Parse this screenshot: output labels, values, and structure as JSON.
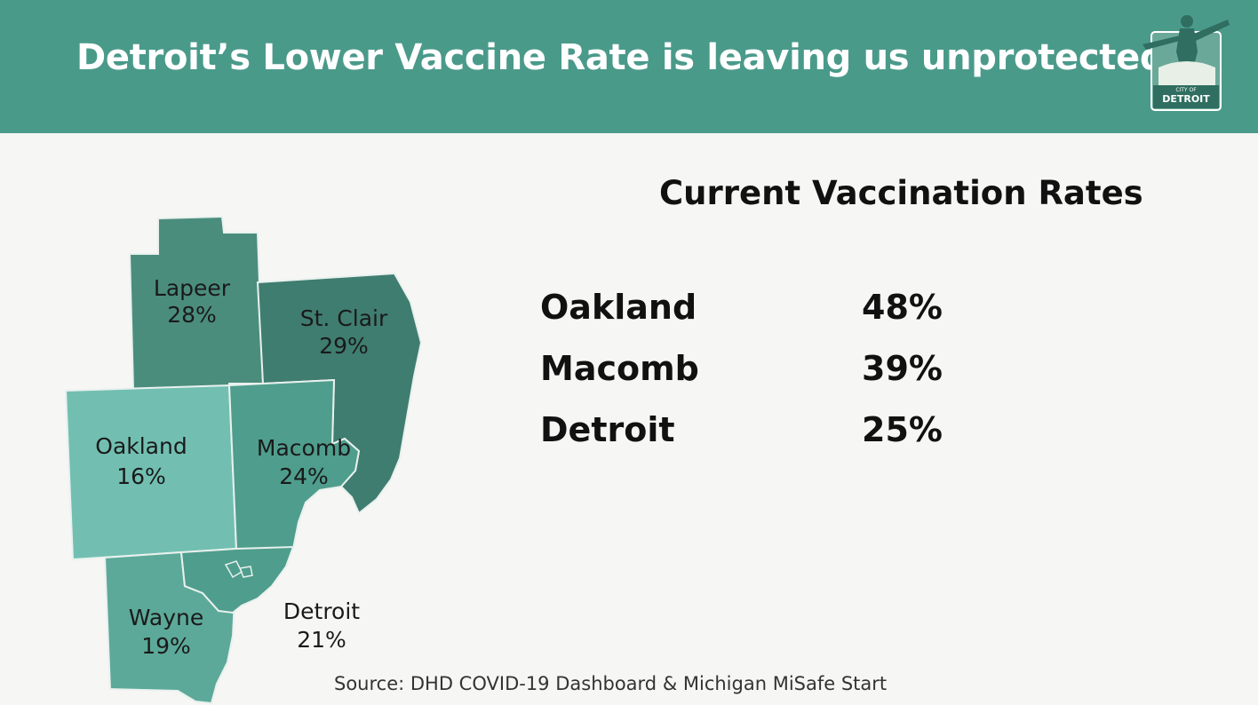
{
  "header": {
    "title": "Detroit’s Lower Vaccine Rate is leaving us unprotected",
    "background_color": "#4a9a8a",
    "logo": {
      "icon": "city-of-detroit-logo",
      "top_text": "CITY OF",
      "bottom_text": "DETROIT"
    }
  },
  "map": {
    "regions": [
      {
        "id": "lapeer",
        "name": "Lapeer",
        "value": "28%",
        "color": "#4b8d7d"
      },
      {
        "id": "stclair",
        "name": "St. Clair",
        "value": "29%",
        "color": "#3f7d70"
      },
      {
        "id": "oakland",
        "name": "Oakland",
        "value": "16%",
        "color": "#72bfb2"
      },
      {
        "id": "macomb",
        "name": "Macomb",
        "value": "24%",
        "color": "#4f9d8d"
      },
      {
        "id": "wayne",
        "name": "Wayne",
        "value": "19%",
        "color": "#5ca999"
      },
      {
        "id": "detroit",
        "name": "Detroit",
        "value": "21%",
        "color": "#4f9d8d"
      }
    ]
  },
  "rates": {
    "title": "Current Vaccination Rates",
    "rows": [
      {
        "name": "Oakland",
        "value": "48%"
      },
      {
        "name": "Macomb",
        "value": "39%"
      },
      {
        "name": "Detroit",
        "value": "25%"
      }
    ]
  },
  "source": "Source: DHD COVID-19 Dashboard & Michigan MiSafe Start"
}
